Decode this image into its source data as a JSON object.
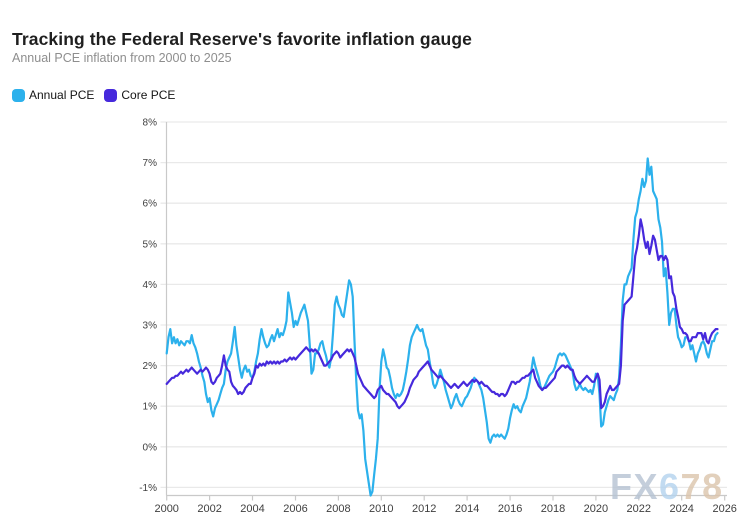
{
  "watermark": {
    "text": "FX678",
    "parts": [
      {
        "text": "FX",
        "color": "#b6c3d3"
      },
      {
        "text": "6",
        "color": "#b4d3ee"
      },
      {
        "text": "78",
        "color": "#dcc5ac"
      }
    ]
  },
  "chart_data": {
    "type": "line",
    "title": "Tracking the Federal Reserve's favorite inflation gauge",
    "subtitle": "Annual PCE inflation from 2000 to 2025",
    "xlabel": "",
    "ylabel": "",
    "x_unit": "year",
    "y_unit": "percent, year-over-year",
    "xlim": [
      2000,
      2026
    ],
    "ylim": [
      -1.2,
      8
    ],
    "xticks": [
      2000,
      2002,
      2004,
      2006,
      2008,
      2010,
      2012,
      2014,
      2016,
      2018,
      2020,
      2022,
      2024,
      2026
    ],
    "yticks": [
      "8%",
      "7%",
      "6%",
      "5%",
      "4%",
      "3%",
      "2%",
      "1%",
      "0%",
      "-1%"
    ],
    "ytick_values": [
      8,
      7,
      6,
      5,
      4,
      3,
      2,
      1,
      0,
      -1
    ],
    "grid": "horizontal",
    "legend_position": "top-left",
    "series": [
      {
        "name": "Annual PCE",
        "color": "#2cb1ec",
        "start_year": 2000,
        "interval_years": 0.08333,
        "values": [
          2.3,
          2.7,
          2.9,
          2.55,
          2.7,
          2.55,
          2.65,
          2.5,
          2.6,
          2.55,
          2.5,
          2.6,
          2.6,
          2.55,
          2.75,
          2.55,
          2.45,
          2.3,
          2.1,
          1.95,
          1.75,
          1.6,
          1.3,
          1.1,
          1.2,
          0.9,
          0.75,
          0.95,
          1.05,
          1.15,
          1.3,
          1.45,
          1.55,
          1.9,
          2.1,
          2.2,
          2.3,
          2.6,
          2.95,
          2.5,
          2.2,
          1.9,
          1.7,
          1.9,
          2.0,
          1.85,
          1.9,
          1.75,
          1.7,
          1.85,
          2.1,
          2.3,
          2.65,
          2.9,
          2.7,
          2.55,
          2.45,
          2.5,
          2.65,
          2.75,
          2.6,
          2.75,
          2.9,
          2.7,
          2.8,
          2.75,
          2.9,
          3.1,
          3.8,
          3.55,
          3.3,
          2.95,
          3.1,
          3.0,
          3.15,
          3.3,
          3.4,
          3.5,
          3.3,
          3.1,
          2.5,
          1.8,
          1.9,
          2.3,
          2.3,
          2.4,
          2.55,
          2.6,
          2.4,
          2.25,
          2.05,
          1.95,
          2.2,
          2.8,
          3.5,
          3.7,
          3.5,
          3.4,
          3.25,
          3.2,
          3.5,
          3.8,
          4.1,
          4.0,
          3.7,
          2.6,
          1.6,
          0.9,
          0.7,
          0.8,
          0.4,
          -0.3,
          -0.6,
          -0.9,
          -1.2,
          -1.1,
          -0.7,
          -0.3,
          0.2,
          1.4,
          2.1,
          2.4,
          2.2,
          1.95,
          1.9,
          1.7,
          1.45,
          1.3,
          1.2,
          1.3,
          1.25,
          1.3,
          1.4,
          1.6,
          1.85,
          2.15,
          2.5,
          2.7,
          2.8,
          2.9,
          3.0,
          2.9,
          2.85,
          2.9,
          2.7,
          2.5,
          2.4,
          2.1,
          1.85,
          1.55,
          1.45,
          1.55,
          1.7,
          1.9,
          1.75,
          1.6,
          1.4,
          1.25,
          1.1,
          0.95,
          1.05,
          1.2,
          1.3,
          1.15,
          1.05,
          1.0,
          1.1,
          1.2,
          1.25,
          1.35,
          1.45,
          1.6,
          1.7,
          1.65,
          1.6,
          1.5,
          1.4,
          1.2,
          0.9,
          0.6,
          0.2,
          0.1,
          0.25,
          0.3,
          0.25,
          0.3,
          0.25,
          0.3,
          0.25,
          0.2,
          0.3,
          0.45,
          0.7,
          0.9,
          1.05,
          0.95,
          1.0,
          0.9,
          0.85,
          1.0,
          1.1,
          1.2,
          1.4,
          1.6,
          1.9,
          2.2,
          2.0,
          1.85,
          1.7,
          1.5,
          1.4,
          1.45,
          1.55,
          1.65,
          1.75,
          1.8,
          1.85,
          1.95,
          2.1,
          2.25,
          2.3,
          2.25,
          2.3,
          2.25,
          2.15,
          2.05,
          1.95,
          1.85,
          1.55,
          1.4,
          1.45,
          1.55,
          1.45,
          1.4,
          1.45,
          1.4,
          1.35,
          1.4,
          1.3,
          1.5,
          1.8,
          1.75,
          1.3,
          0.5,
          0.55,
          0.85,
          1.0,
          1.15,
          1.25,
          1.2,
          1.15,
          1.3,
          1.4,
          1.7,
          2.5,
          3.6,
          4.0,
          4.0,
          4.2,
          4.3,
          4.4,
          5.1,
          5.65,
          5.8,
          6.1,
          6.3,
          6.6,
          6.4,
          6.55,
          7.1,
          6.7,
          6.9,
          6.3,
          6.2,
          6.1,
          5.6,
          5.4,
          5.05,
          4.2,
          4.4,
          3.8,
          3.0,
          3.3,
          3.4,
          3.4,
          3.0,
          2.7,
          2.6,
          2.45,
          2.5,
          2.7,
          2.7,
          2.6,
          2.4,
          2.5,
          2.3,
          2.1,
          2.3,
          2.4,
          2.55,
          2.6,
          2.5,
          2.3,
          2.2,
          2.4,
          2.6,
          2.6,
          2.75,
          2.8
        ]
      },
      {
        "name": "Core PCE",
        "color": "#4629dc",
        "start_year": 2000,
        "interval_years": 0.08333,
        "values": [
          1.55,
          1.6,
          1.65,
          1.7,
          1.7,
          1.75,
          1.75,
          1.8,
          1.85,
          1.8,
          1.85,
          1.9,
          1.85,
          1.9,
          1.95,
          1.9,
          1.85,
          1.8,
          1.85,
          1.9,
          1.85,
          1.9,
          1.95,
          1.9,
          1.8,
          1.6,
          1.55,
          1.6,
          1.7,
          1.75,
          1.8,
          2.0,
          2.25,
          2.0,
          1.9,
          1.85,
          1.6,
          1.5,
          1.45,
          1.4,
          1.3,
          1.35,
          1.3,
          1.35,
          1.45,
          1.5,
          1.55,
          1.55,
          1.7,
          1.8,
          2.0,
          1.95,
          2.05,
          2.0,
          2.05,
          2.0,
          2.1,
          2.05,
          2.1,
          2.05,
          2.1,
          2.05,
          2.1,
          2.05,
          2.1,
          2.1,
          2.15,
          2.1,
          2.15,
          2.2,
          2.15,
          2.2,
          2.15,
          2.2,
          2.25,
          2.3,
          2.35,
          2.4,
          2.45,
          2.4,
          2.35,
          2.4,
          2.35,
          2.4,
          2.35,
          2.3,
          2.2,
          2.1,
          2.0,
          2.0,
          2.05,
          2.1,
          2.15,
          2.25,
          2.3,
          2.35,
          2.3,
          2.2,
          2.25,
          2.3,
          2.35,
          2.4,
          2.35,
          2.4,
          2.3,
          2.2,
          2.0,
          1.8,
          1.7,
          1.6,
          1.5,
          1.45,
          1.4,
          1.35,
          1.3,
          1.25,
          1.2,
          1.25,
          1.4,
          1.45,
          1.5,
          1.4,
          1.35,
          1.3,
          1.3,
          1.25,
          1.2,
          1.15,
          1.1,
          1.0,
          0.95,
          1.0,
          1.05,
          1.1,
          1.2,
          1.3,
          1.45,
          1.55,
          1.65,
          1.7,
          1.75,
          1.85,
          1.9,
          1.95,
          2.0,
          2.05,
          2.1,
          2.0,
          1.9,
          1.85,
          1.8,
          1.75,
          1.7,
          1.75,
          1.7,
          1.65,
          1.6,
          1.55,
          1.5,
          1.45,
          1.5,
          1.55,
          1.5,
          1.45,
          1.5,
          1.55,
          1.6,
          1.55,
          1.5,
          1.55,
          1.6,
          1.65,
          1.6,
          1.65,
          1.6,
          1.55,
          1.6,
          1.55,
          1.5,
          1.5,
          1.45,
          1.4,
          1.35,
          1.35,
          1.3,
          1.3,
          1.25,
          1.3,
          1.3,
          1.25,
          1.3,
          1.4,
          1.5,
          1.6,
          1.6,
          1.55,
          1.6,
          1.6,
          1.65,
          1.7,
          1.7,
          1.75,
          1.75,
          1.8,
          1.85,
          1.9,
          1.7,
          1.6,
          1.5,
          1.45,
          1.4,
          1.45,
          1.45,
          1.5,
          1.55,
          1.6,
          1.65,
          1.7,
          1.85,
          1.9,
          1.95,
          2.0,
          2.0,
          1.95,
          2.0,
          1.95,
          1.9,
          1.9,
          1.75,
          1.65,
          1.6,
          1.55,
          1.6,
          1.65,
          1.7,
          1.75,
          1.7,
          1.65,
          1.6,
          1.6,
          1.7,
          1.8,
          1.65,
          0.95,
          1.0,
          1.1,
          1.3,
          1.4,
          1.5,
          1.4,
          1.4,
          1.45,
          1.5,
          1.55,
          2.0,
          3.1,
          3.5,
          3.55,
          3.6,
          3.65,
          3.7,
          4.2,
          4.7,
          4.9,
          5.2,
          5.6,
          5.4,
          5.1,
          4.9,
          5.05,
          4.75,
          4.95,
          5.2,
          5.1,
          4.85,
          4.6,
          4.7,
          4.7,
          4.6,
          4.7,
          4.6,
          4.15,
          4.2,
          3.8,
          3.7,
          3.4,
          3.2,
          2.95,
          2.9,
          2.8,
          2.8,
          2.75,
          2.6,
          2.6,
          2.7,
          2.7,
          2.7,
          2.8,
          2.8,
          2.8,
          2.65,
          2.8,
          2.6,
          2.55,
          2.7,
          2.8,
          2.85,
          2.9,
          2.9
        ]
      }
    ]
  }
}
